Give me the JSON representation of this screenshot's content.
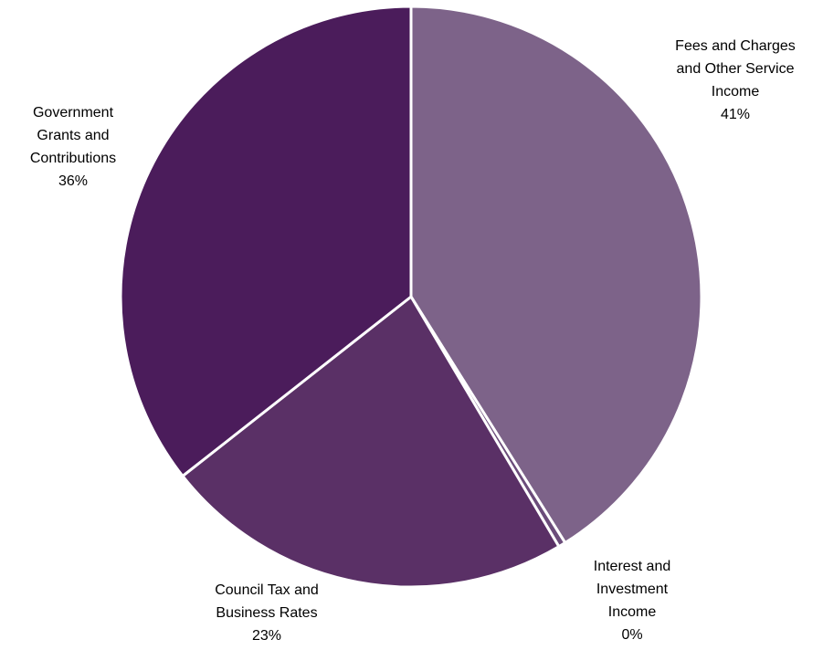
{
  "chart_data": {
    "type": "pie",
    "title": "",
    "slices": [
      {
        "label_lines": [
          "Fees and Charges",
          "and Other Service",
          "Income"
        ],
        "label": "Fees and Charges and Other Service Income",
        "percent_label": "41%",
        "value": 41.1,
        "color": "#7d6389"
      },
      {
        "label_lines": [
          "Interest and",
          "Investment",
          "Income"
        ],
        "label": "Interest and Investment Income",
        "percent_label": "0%",
        "value": 0.4,
        "color": "#6b4c7a"
      },
      {
        "label_lines": [
          "Council Tax and",
          "Business Rates"
        ],
        "label": "Council Tax and Business Rates",
        "percent_label": "23%",
        "value": 22.9,
        "color": "#5a3066"
      },
      {
        "label_lines": [
          "Government",
          "Grants and",
          "Contributions"
        ],
        "label": "Government Grants and Contributions",
        "percent_label": "36%",
        "value": 35.6,
        "color": "#4b1c5b"
      }
    ],
    "start_angle_deg": 0,
    "direction": "clockwise",
    "legend": "none",
    "data_labels": "outside, category name and percentage"
  }
}
